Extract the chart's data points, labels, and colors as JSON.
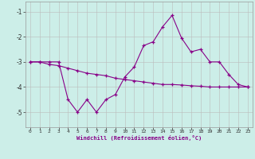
{
  "xlabel": "Windchill (Refroidissement éolien,°C)",
  "background_color": "#cceee8",
  "line_color": "#880088",
  "grid_color": "#bbbbbb",
  "x_values": [
    0,
    1,
    2,
    3,
    4,
    5,
    6,
    7,
    8,
    9,
    10,
    11,
    12,
    13,
    14,
    15,
    16,
    17,
    18,
    19,
    20,
    21,
    22,
    23
  ],
  "y_line1": [
    -3.0,
    -3.0,
    -3.0,
    -3.0,
    -4.5,
    -5.0,
    -4.5,
    -5.0,
    -4.5,
    -4.3,
    -3.6,
    -3.2,
    -2.35,
    -2.2,
    -1.6,
    -1.15,
    -2.05,
    -2.6,
    -2.5,
    -3.0,
    -3.0,
    -3.5,
    -3.9,
    -4.0
  ],
  "y_line2": [
    -3.0,
    -3.0,
    -3.1,
    -3.15,
    -3.25,
    -3.35,
    -3.45,
    -3.5,
    -3.55,
    -3.65,
    -3.7,
    -3.75,
    -3.8,
    -3.85,
    -3.9,
    -3.9,
    -3.92,
    -3.95,
    -3.97,
    -4.0,
    -4.0,
    -4.0,
    -4.0,
    -4.0
  ],
  "xlim": [
    -0.5,
    23.5
  ],
  "ylim": [
    -5.6,
    -0.6
  ],
  "yticks": [
    -5,
    -4,
    -3,
    -2,
    -1
  ],
  "xticks": [
    0,
    1,
    2,
    3,
    4,
    5,
    6,
    7,
    8,
    9,
    10,
    11,
    12,
    13,
    14,
    15,
    16,
    17,
    18,
    19,
    20,
    21,
    22,
    23
  ]
}
